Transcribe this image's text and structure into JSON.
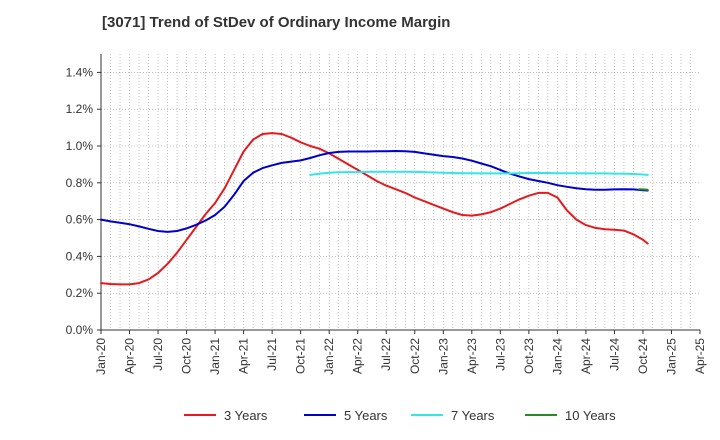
{
  "chart_data": {
    "type": "line",
    "title": "[3071]  Trend of StDev of Ordinary Income Margin",
    "xlabel": "",
    "ylabel": "",
    "ylim": [
      0,
      1.5
    ],
    "y_ticks": [
      "0.0%",
      "0.2%",
      "0.4%",
      "0.6%",
      "0.8%",
      "1.0%",
      "1.2%",
      "1.4%"
    ],
    "y_tick_values": [
      0,
      0.2,
      0.4,
      0.6,
      0.8,
      1.0,
      1.2,
      1.4
    ],
    "x_ticks": [
      "Jan-20",
      "Apr-20",
      "Jul-20",
      "Oct-20",
      "Jan-21",
      "Apr-21",
      "Jul-21",
      "Oct-21",
      "Jan-22",
      "Apr-22",
      "Jul-22",
      "Oct-22",
      "Jan-23",
      "Apr-23",
      "Jul-23",
      "Oct-23",
      "Jan-24",
      "Apr-24",
      "Jul-24",
      "Oct-24",
      "Jan-25",
      "Apr-25"
    ],
    "x_range_months": [
      0,
      63
    ],
    "grid": true,
    "legend_position": "bottom",
    "series": [
      {
        "name": "3 Years",
        "color": "#e41a1c",
        "points": [
          [
            0,
            0.255
          ],
          [
            1,
            0.25
          ],
          [
            2,
            0.248
          ],
          [
            3,
            0.248
          ],
          [
            4,
            0.255
          ],
          [
            5,
            0.275
          ],
          [
            6,
            0.31
          ],
          [
            7,
            0.36
          ],
          [
            8,
            0.42
          ],
          [
            9,
            0.49
          ],
          [
            10,
            0.56
          ],
          [
            11,
            0.63
          ],
          [
            12,
            0.69
          ],
          [
            13,
            0.77
          ],
          [
            14,
            0.87
          ],
          [
            15,
            0.97
          ],
          [
            16,
            1.035
          ],
          [
            17,
            1.065
          ],
          [
            18,
            1.07
          ],
          [
            19,
            1.065
          ],
          [
            20,
            1.045
          ],
          [
            21,
            1.02
          ],
          [
            22,
            1.0
          ],
          [
            23,
            0.985
          ],
          [
            24,
            0.96
          ],
          [
            25,
            0.93
          ],
          [
            26,
            0.9
          ],
          [
            27,
            0.87
          ],
          [
            28,
            0.84
          ],
          [
            29,
            0.81
          ],
          [
            30,
            0.785
          ],
          [
            31,
            0.765
          ],
          [
            32,
            0.745
          ],
          [
            33,
            0.72
          ],
          [
            34,
            0.7
          ],
          [
            35,
            0.68
          ],
          [
            36,
            0.66
          ],
          [
            37,
            0.64
          ],
          [
            38,
            0.625
          ],
          [
            39,
            0.622
          ],
          [
            40,
            0.628
          ],
          [
            41,
            0.64
          ],
          [
            42,
            0.66
          ],
          [
            43,
            0.685
          ],
          [
            44,
            0.71
          ],
          [
            45,
            0.73
          ],
          [
            46,
            0.745
          ],
          [
            47,
            0.745
          ],
          [
            48,
            0.72
          ],
          [
            49,
            0.65
          ],
          [
            50,
            0.6
          ],
          [
            51,
            0.57
          ],
          [
            52,
            0.555
          ],
          [
            53,
            0.548
          ],
          [
            54,
            0.545
          ],
          [
            55,
            0.54
          ],
          [
            56,
            0.52
          ],
          [
            57,
            0.49
          ],
          [
            57.5,
            0.47
          ]
        ]
      },
      {
        "name": "5 Years",
        "color": "#0000cc",
        "points": [
          [
            0,
            0.6
          ],
          [
            1,
            0.59
          ],
          [
            2,
            0.583
          ],
          [
            3,
            0.575
          ],
          [
            4,
            0.563
          ],
          [
            5,
            0.55
          ],
          [
            6,
            0.538
          ],
          [
            7,
            0.533
          ],
          [
            8,
            0.538
          ],
          [
            9,
            0.552
          ],
          [
            10,
            0.572
          ],
          [
            11,
            0.595
          ],
          [
            12,
            0.625
          ],
          [
            13,
            0.67
          ],
          [
            14,
            0.735
          ],
          [
            15,
            0.81
          ],
          [
            16,
            0.855
          ],
          [
            17,
            0.88
          ],
          [
            18,
            0.895
          ],
          [
            19,
            0.908
          ],
          [
            20,
            0.915
          ],
          [
            21,
            0.922
          ],
          [
            22,
            0.935
          ],
          [
            23,
            0.95
          ],
          [
            24,
            0.962
          ],
          [
            25,
            0.968
          ],
          [
            26,
            0.97
          ],
          [
            27,
            0.97
          ],
          [
            28,
            0.97
          ],
          [
            29,
            0.971
          ],
          [
            30,
            0.972
          ],
          [
            31,
            0.973
          ],
          [
            32,
            0.972
          ],
          [
            33,
            0.968
          ],
          [
            34,
            0.96
          ],
          [
            35,
            0.952
          ],
          [
            36,
            0.945
          ],
          [
            37,
            0.94
          ],
          [
            38,
            0.932
          ],
          [
            39,
            0.92
          ],
          [
            40,
            0.905
          ],
          [
            41,
            0.89
          ],
          [
            42,
            0.87
          ],
          [
            43,
            0.85
          ],
          [
            44,
            0.835
          ],
          [
            45,
            0.82
          ],
          [
            46,
            0.81
          ],
          [
            47,
            0.8
          ],
          [
            48,
            0.787
          ],
          [
            49,
            0.778
          ],
          [
            50,
            0.77
          ],
          [
            51,
            0.765
          ],
          [
            52,
            0.762
          ],
          [
            53,
            0.762
          ],
          [
            54,
            0.764
          ],
          [
            55,
            0.765
          ],
          [
            56,
            0.764
          ],
          [
            57,
            0.76
          ],
          [
            57.5,
            0.758
          ]
        ]
      },
      {
        "name": "7 Years",
        "color": "#33e6e6",
        "points": [
          [
            22,
            0.843
          ],
          [
            23,
            0.85
          ],
          [
            24,
            0.855
          ],
          [
            25,
            0.857
          ],
          [
            26,
            0.858
          ],
          [
            27,
            0.858
          ],
          [
            28,
            0.859
          ],
          [
            29,
            0.86
          ],
          [
            30,
            0.86
          ],
          [
            31,
            0.86
          ],
          [
            32,
            0.86
          ],
          [
            33,
            0.859
          ],
          [
            34,
            0.858
          ],
          [
            35,
            0.856
          ],
          [
            36,
            0.855
          ],
          [
            37,
            0.853
          ],
          [
            38,
            0.852
          ],
          [
            39,
            0.852
          ],
          [
            40,
            0.851
          ],
          [
            41,
            0.851
          ],
          [
            42,
            0.851
          ],
          [
            43,
            0.851
          ],
          [
            44,
            0.852
          ],
          [
            45,
            0.853
          ],
          [
            46,
            0.853
          ],
          [
            47,
            0.853
          ],
          [
            48,
            0.852
          ],
          [
            49,
            0.852
          ],
          [
            50,
            0.852
          ],
          [
            51,
            0.851
          ],
          [
            52,
            0.851
          ],
          [
            53,
            0.851
          ],
          [
            54,
            0.85
          ],
          [
            55,
            0.85
          ],
          [
            56,
            0.848
          ],
          [
            57,
            0.845
          ],
          [
            57.5,
            0.843
          ]
        ]
      },
      {
        "name": "10 Years",
        "color": "#228b22",
        "points": [
          [
            56.6,
            0.765
          ],
          [
            57,
            0.764
          ],
          [
            57.5,
            0.762
          ]
        ]
      }
    ]
  }
}
